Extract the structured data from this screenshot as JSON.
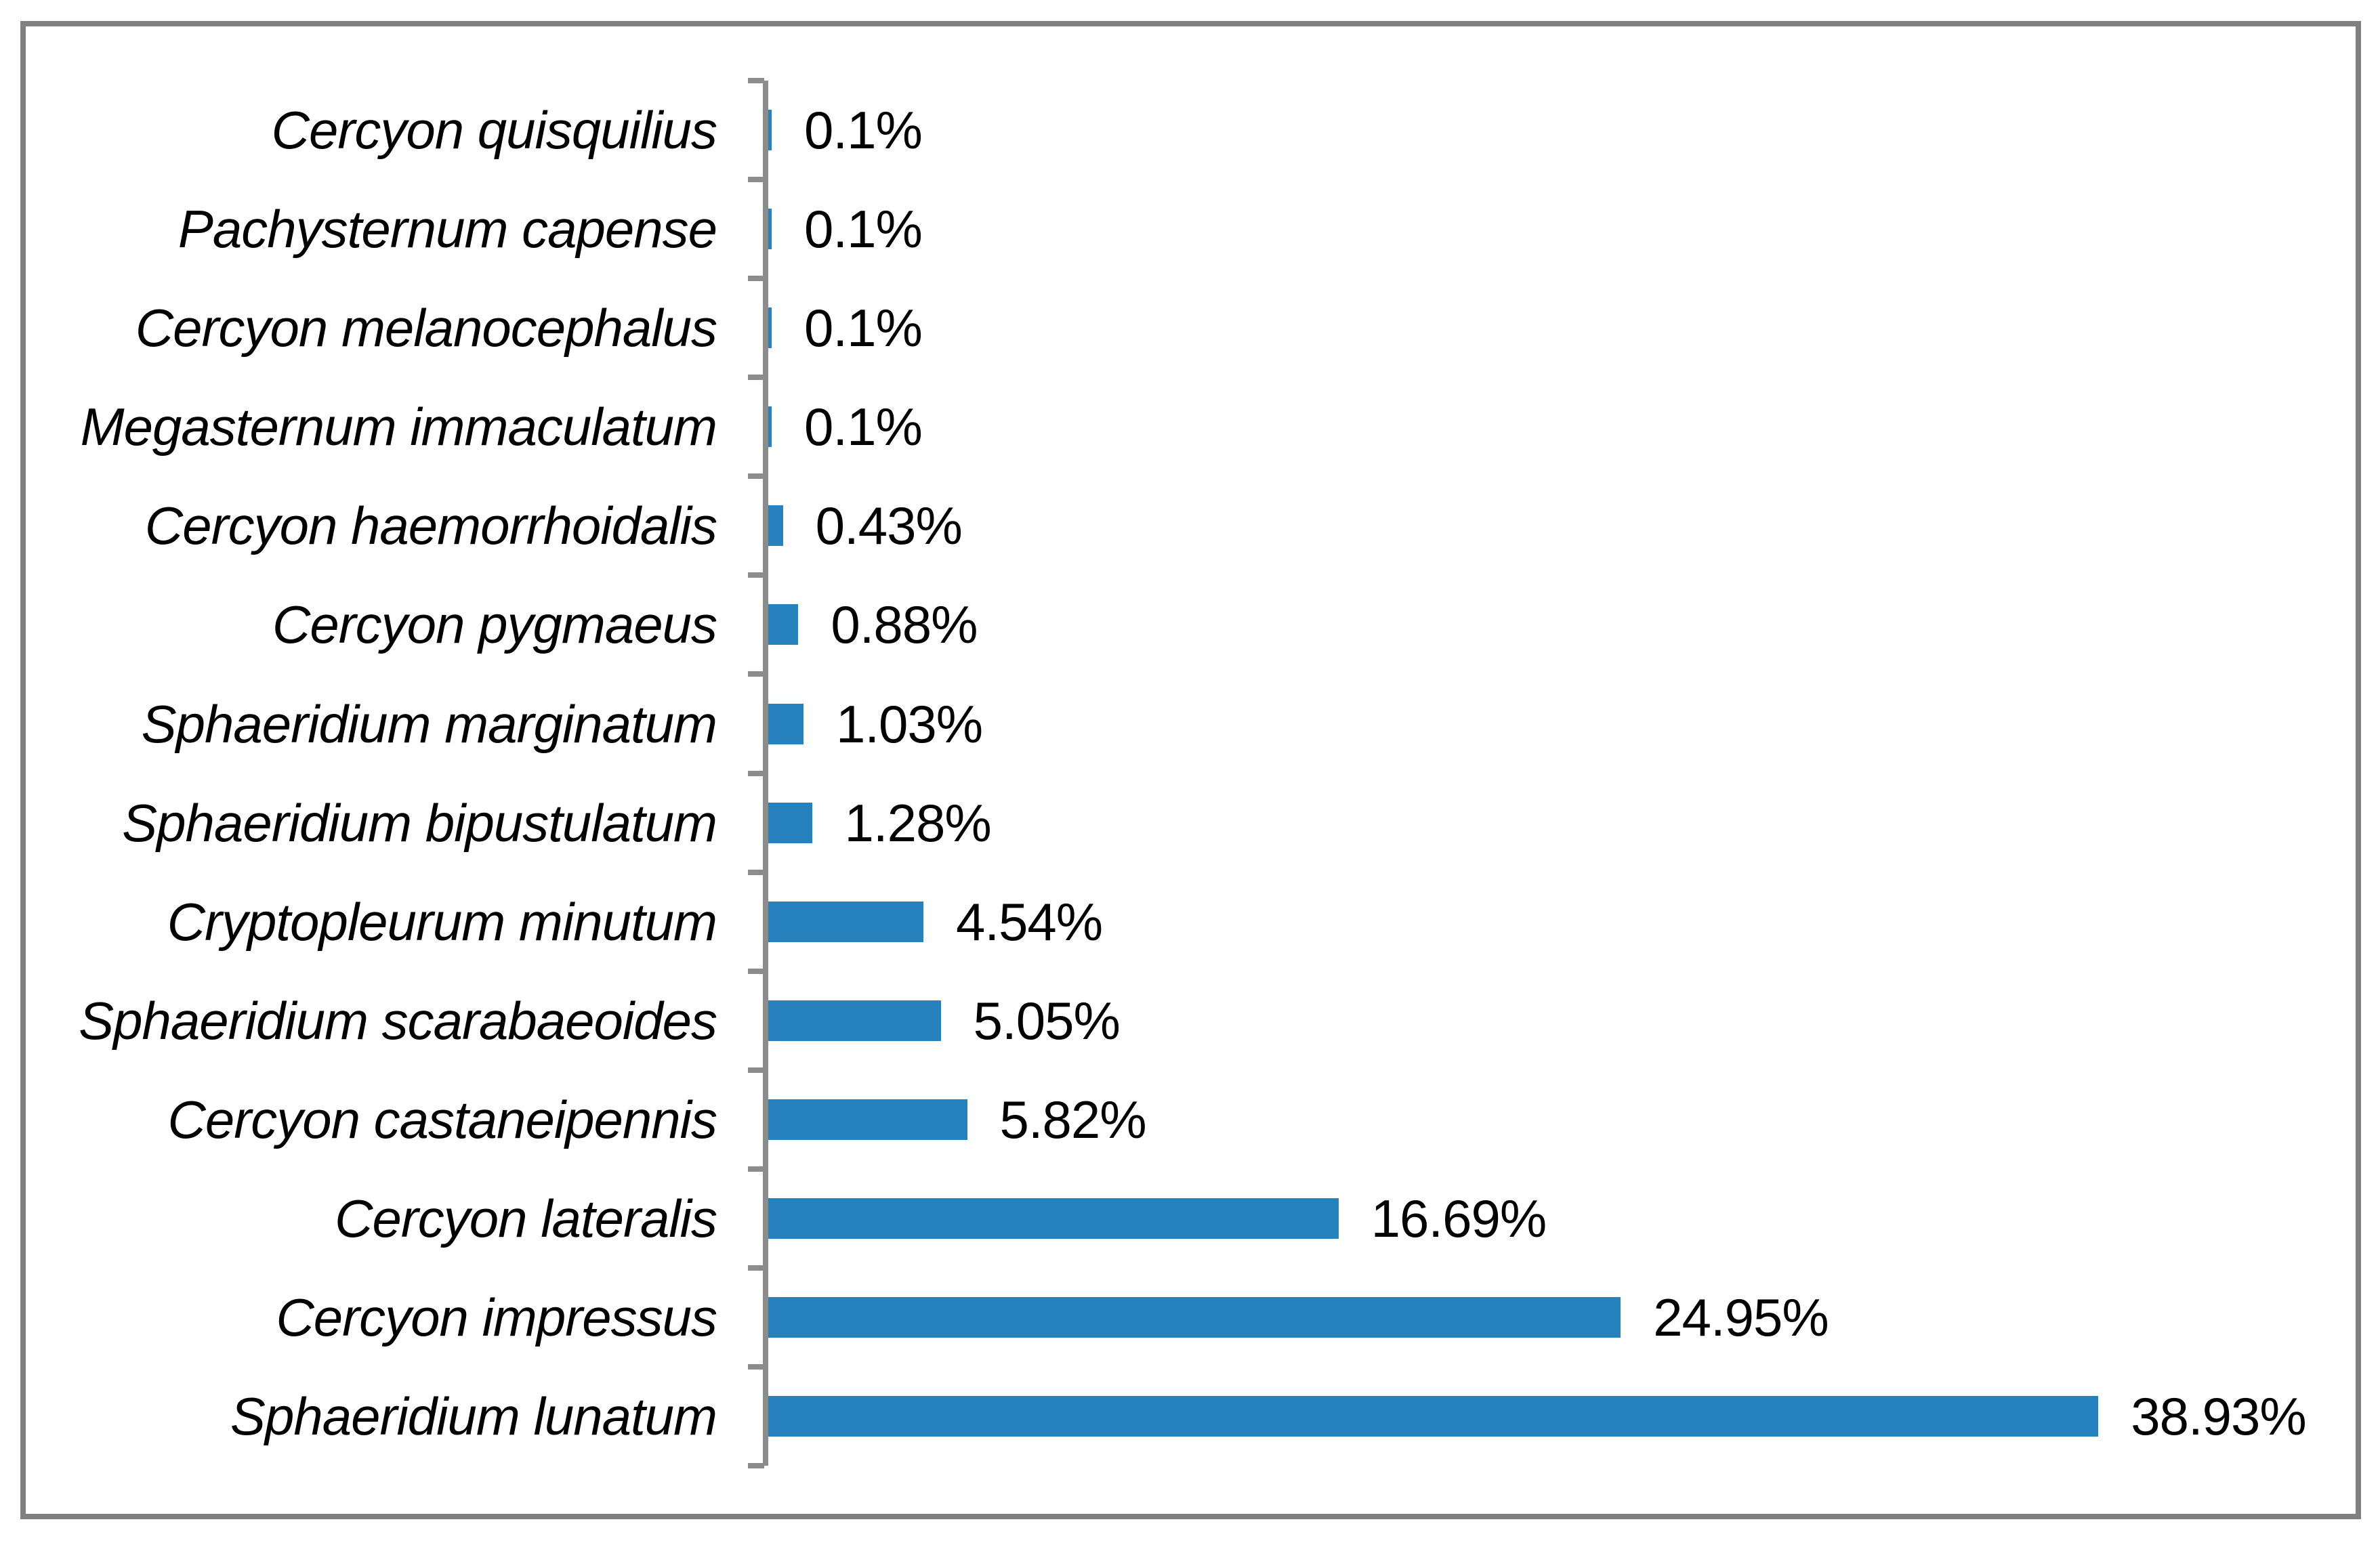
{
  "chart_data": {
    "type": "bar",
    "orientation": "horizontal",
    "title": "",
    "xlabel": "",
    "ylabel": "",
    "grid": false,
    "legend": false,
    "categories": [
      "Cercyon quisquilius",
      "Pachysternum capense",
      "Cercyon melanocephalus",
      "Megasternum immaculatum",
      "Cercyon haemorrhoidalis",
      "Cercyon pygmaeus",
      "Sphaeridium marginatum",
      "Sphaeridium bipustulatum",
      "Cryptopleurum minutum",
      "Sphaeridium scarabaeoides",
      "Cercyon castaneipennis",
      "Cercyon lateralis",
      "Cercyon impressus",
      "Sphaeridium lunatum"
    ],
    "values": [
      0.1,
      0.1,
      0.1,
      0.1,
      0.43,
      0.88,
      1.03,
      1.28,
      4.54,
      5.05,
      5.82,
      16.69,
      24.95,
      38.93
    ],
    "value_labels": [
      "0.1%",
      "0.1%",
      "0.1%",
      "0.1%",
      "0.43%",
      "0.88%",
      "1.03%",
      "1.28%",
      "4.54%",
      "5.05%",
      "5.82%",
      "16.69%",
      "24.95%",
      "38.93%"
    ],
    "bar_color": "#2681BD",
    "axis_color": "#8C8C8C",
    "frame_border_color": "#808080",
    "text_color": "#000000",
    "background_color": "#FFFFFF"
  }
}
